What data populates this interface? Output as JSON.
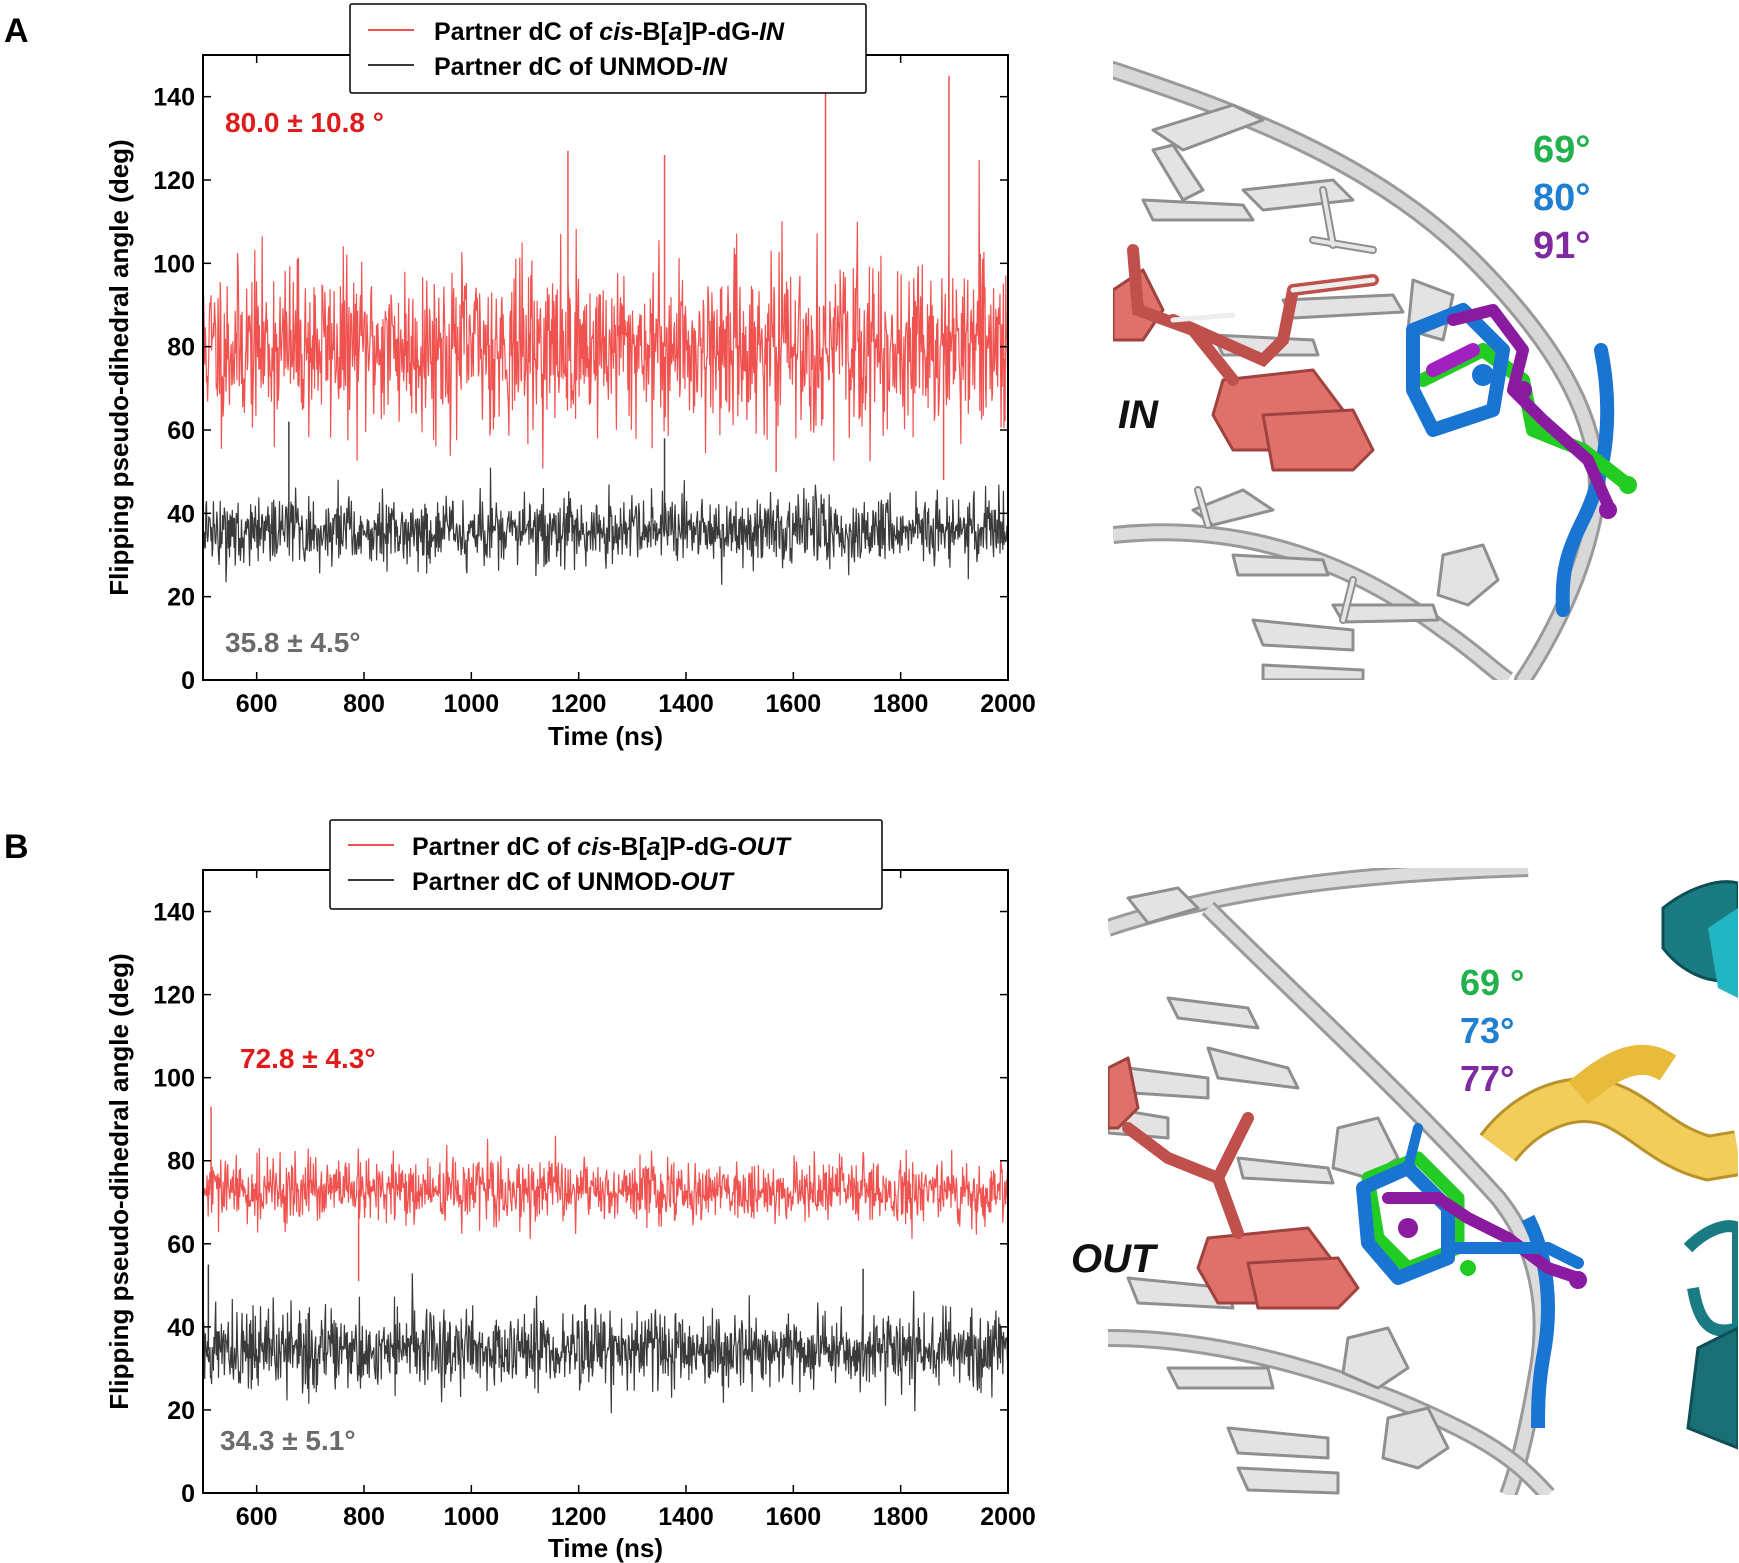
{
  "panels": [
    {
      "letter": "A",
      "legend": {
        "red": {
          "prefix": "Partner dC of ",
          "italic1": "cis",
          "mid1": "-B[",
          "italic2": "a",
          "mid2": "]P-dG-",
          "italic3": "IN"
        },
        "black": {
          "prefix": "Partner dC of UNMOD-",
          "italic": "IN"
        }
      },
      "stats": {
        "red": "80.0 ± 10.8 °",
        "black": "35.8 ± 4.5°"
      },
      "structure": {
        "label": "IN",
        "angles": [
          {
            "text": "69°",
            "color": "#22b14c"
          },
          {
            "text": "80°",
            "color": "#1f7fd1"
          },
          {
            "text": "91°",
            "color": "#7f2aa0"
          }
        ]
      }
    },
    {
      "letter": "B",
      "legend": {
        "red": {
          "prefix": "Partner dC of ",
          "italic1": "cis",
          "mid1": "-B[",
          "italic2": "a",
          "mid2": "]P-dG-",
          "italic3": "OUT"
        },
        "black": {
          "prefix": "Partner dC of UNMOD-",
          "italic": "OUT"
        }
      },
      "stats": {
        "red": "72.8 ± 4.3°",
        "black": "34.3 ± 5.1°"
      },
      "structure": {
        "label": "OUT",
        "angles": [
          {
            "text": "69 °",
            "color": "#22b14c"
          },
          {
            "text": "73°",
            "color": "#1f7fd1"
          },
          {
            "text": "77°",
            "color": "#7f2aa0"
          }
        ]
      }
    }
  ],
  "chart_data": [
    {
      "type": "line",
      "xlabel": "Time (ns)",
      "ylabel": "Flipping pseudo-dihedral angle (deg)",
      "xlim": [
        500,
        2000
      ],
      "ylim": [
        0,
        150
      ],
      "xticks": [
        600,
        800,
        1000,
        1200,
        1400,
        1600,
        1800,
        2000
      ],
      "yticks": [
        0,
        20,
        40,
        60,
        80,
        100,
        120,
        140
      ],
      "grid": false,
      "legend_position": "top-center",
      "series": [
        {
          "name": "Partner dC of cis-B[a]P-dG-IN",
          "color": "#f0524f",
          "mean": 80.0,
          "sd": 10.8,
          "spikes": [
            {
              "x": 1180,
              "y": 127
            },
            {
              "x": 1360,
              "y": 126
            },
            {
              "x": 1660,
              "y": 142
            },
            {
              "x": 1890,
              "y": 145
            },
            {
              "x": 1568,
              "y": 50
            },
            {
              "x": 1880,
              "y": 48
            }
          ]
        },
        {
          "name": "Partner dC of UNMOD-IN",
          "color": "#3a3a3a",
          "mean": 35.8,
          "sd": 4.5,
          "spikes": [
            {
              "x": 660,
              "y": 62
            },
            {
              "x": 1360,
              "y": 58
            }
          ]
        }
      ]
    },
    {
      "type": "line",
      "xlabel": "Time (ns)",
      "ylabel": "Flipping pseudo-dihedral angle (deg)",
      "xlim": [
        500,
        2000
      ],
      "ylim": [
        0,
        150
      ],
      "xticks": [
        600,
        800,
        1000,
        1200,
        1400,
        1600,
        1800,
        2000
      ],
      "yticks": [
        0,
        20,
        40,
        60,
        80,
        100,
        120,
        140
      ],
      "grid": false,
      "legend_position": "top-center",
      "series": [
        {
          "name": "Partner dC of cis-B[a]P-dG-OUT",
          "color": "#f0524f",
          "mean": 72.8,
          "sd": 4.3,
          "spikes": [
            {
              "x": 515,
              "y": 93
            },
            {
              "x": 790,
              "y": 51
            }
          ]
        },
        {
          "name": "Partner dC of UNMOD-OUT",
          "color": "#3a3a3a",
          "mean": 34.3,
          "sd": 5.1,
          "spikes": [
            {
              "x": 510,
              "y": 55
            },
            {
              "x": 1730,
              "y": 54
            }
          ]
        }
      ]
    }
  ]
}
